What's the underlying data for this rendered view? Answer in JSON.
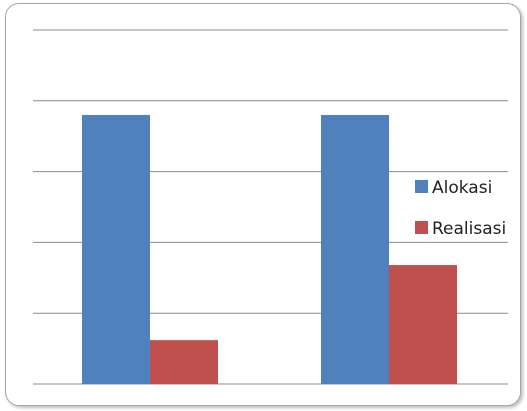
{
  "chart_data": {
    "type": "bar",
    "title": "",
    "xlabel": "",
    "ylabel": "",
    "categories": [
      "",
      ""
    ],
    "series": [
      {
        "name": "Alokasi",
        "color": "#4f81bd",
        "values": [
          3.8,
          3.8
        ]
      },
      {
        "name": "Realisasi",
        "color": "#c0504d",
        "values": [
          0.62,
          1.68
        ]
      }
    ],
    "ylim": [
      0,
      5
    ],
    "grid": true,
    "legend": "right"
  }
}
